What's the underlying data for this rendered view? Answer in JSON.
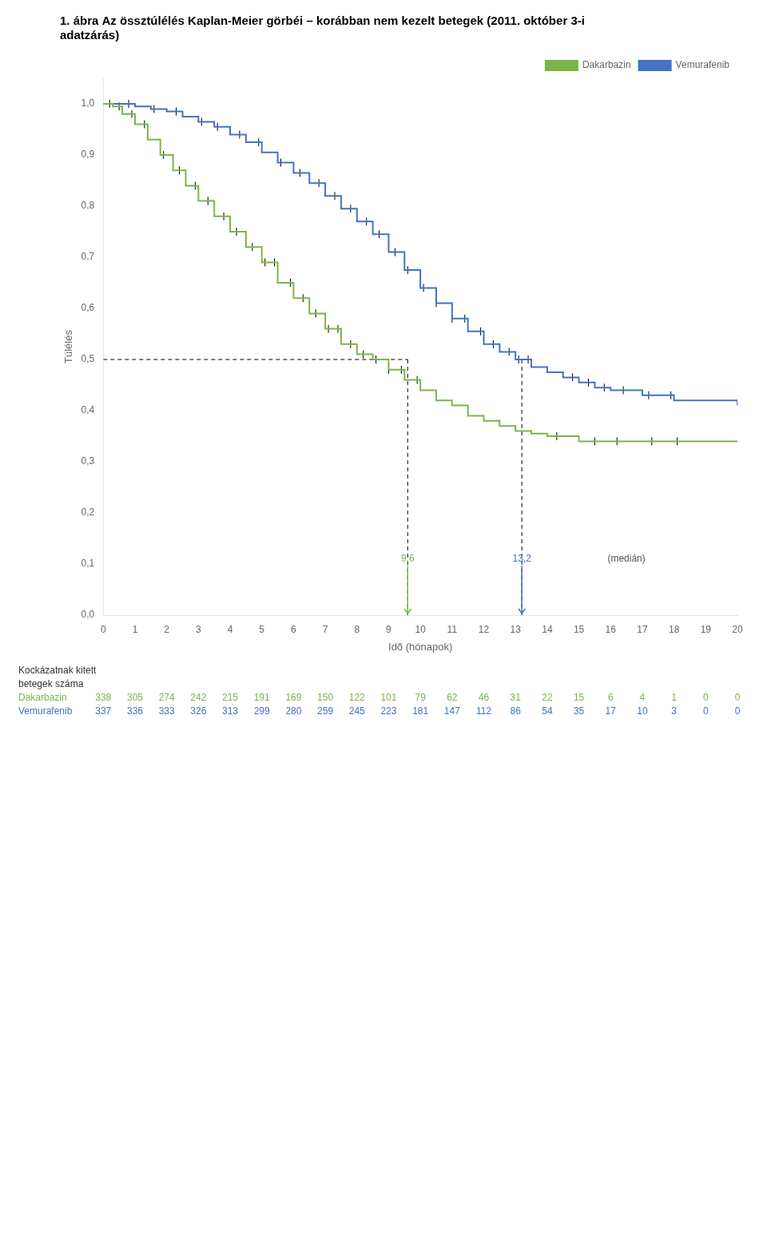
{
  "chart_data": {
    "type": "step",
    "title": [
      "1. ábra Az össztúlélés Kaplan-Meier görbéi – korábban nem kezelt betegek (2011. október 3-i",
      "adatzárás)"
    ],
    "x_label": "Idő (hónapok)",
    "y_label": "Túlélés",
    "xlim": [
      0,
      20
    ],
    "xticks": [
      0,
      1,
      2,
      3,
      4,
      5,
      6,
      7,
      8,
      9,
      10,
      11,
      12,
      13,
      14,
      15,
      16,
      17,
      18,
      19,
      20
    ],
    "ylim": [
      0,
      1.05
    ],
    "yticks": [
      {
        "value": 0,
        "label": "0,0"
      },
      {
        "value": 0.1,
        "label": "0,1"
      },
      {
        "value": 0.2,
        "label": "0,2"
      },
      {
        "value": 0.3,
        "label": "0,3"
      },
      {
        "value": 0.4,
        "label": "0,4"
      },
      {
        "value": 0.5,
        "label": "0,5"
      },
      {
        "value": 0.6,
        "label": "0,6"
      },
      {
        "value": 0.7,
        "label": "0,7"
      },
      {
        "value": 0.8,
        "label": "0,8"
      },
      {
        "value": 0.9,
        "label": "0,9"
      },
      {
        "value": 1,
        "label": "1,0"
      }
    ],
    "grid": false,
    "legend": "upper right",
    "series": [
      {
        "name": "Dakarbazin",
        "color": "#7ab648",
        "x": [
          0,
          0.3,
          0.6,
          1,
          1.4,
          1.8,
          2.2,
          2.6,
          3.0,
          3.5,
          4.0,
          4.5,
          5.0,
          5.5,
          6.0,
          6.5,
          7.0,
          7.5,
          8.0,
          8.5,
          9.0,
          9.5,
          10.0,
          10.5,
          11.0,
          11.5,
          12.0,
          12.5,
          13.0,
          13.5,
          14.0,
          15.0,
          16.0,
          17.0,
          18.0,
          20.0
        ],
        "values": [
          1.0,
          0.995,
          0.98,
          0.96,
          0.93,
          0.9,
          0.87,
          0.84,
          0.81,
          0.78,
          0.75,
          0.72,
          0.69,
          0.65,
          0.62,
          0.59,
          0.56,
          0.53,
          0.51,
          0.5,
          0.48,
          0.46,
          0.44,
          0.42,
          0.41,
          0.39,
          0.38,
          0.37,
          0.36,
          0.355,
          0.35,
          0.34,
          0.34,
          0.34,
          0.34,
          0.34
        ],
        "censored": {
          "color": "black",
          "x": [
            0.2,
            0.5,
            0.9,
            1.3,
            1.9,
            2.4,
            2.9,
            3.3,
            3.8,
            4.2,
            4.7,
            5.1,
            5.4,
            5.9,
            6.3,
            6.7,
            7.1,
            7.4,
            7.8,
            8.2,
            8.6,
            9.0,
            9.4,
            9.9,
            14.3,
            15.5,
            16.2,
            17.3,
            18.1
          ],
          "values": [
            1.0,
            0.995,
            0.98,
            0.96,
            0.9,
            0.87,
            0.84,
            0.81,
            0.78,
            0.75,
            0.72,
            0.69,
            0.69,
            0.65,
            0.62,
            0.59,
            0.56,
            0.56,
            0.53,
            0.51,
            0.5,
            0.48,
            0.48,
            0.46,
            0.35,
            0.34,
            0.34,
            0.34,
            0.34
          ]
        }
      },
      {
        "name": "Vemurafenib",
        "color": "#4472c4",
        "x": [
          0,
          0.5,
          1.0,
          1.5,
          2.0,
          2.5,
          3.0,
          3.5,
          4.0,
          4.5,
          5.0,
          5.5,
          6.0,
          6.5,
          7.0,
          7.5,
          8.0,
          8.5,
          9.0,
          9.5,
          10.0,
          10.5,
          11.0,
          11.5,
          12.0,
          12.5,
          13.0,
          13.5,
          14.0,
          14.5,
          15.0,
          15.5,
          16.0,
          17.0,
          18.0,
          20.0
        ],
        "values": [
          1.0,
          1.0,
          0.995,
          0.99,
          0.985,
          0.975,
          0.965,
          0.955,
          0.94,
          0.925,
          0.905,
          0.885,
          0.865,
          0.845,
          0.82,
          0.795,
          0.77,
          0.745,
          0.71,
          0.675,
          0.64,
          0.61,
          0.58,
          0.555,
          0.53,
          0.515,
          0.5,
          0.485,
          0.475,
          0.465,
          0.455,
          0.445,
          0.44,
          0.43,
          0.42,
          0.41
        ],
        "censored": {
          "color": "black",
          "x": [
            0.8,
            1.6,
            2.3,
            3.1,
            3.6,
            4.3,
            4.9,
            5.6,
            6.2,
            6.8,
            7.3,
            7.8,
            8.3,
            8.7,
            9.2,
            9.6,
            10.1,
            10.5,
            11.0,
            11.4,
            11.9,
            12.3,
            12.8,
            13.1,
            13.4,
            14.8,
            15.3,
            15.8,
            16.4,
            17.2,
            17.9
          ],
          "values": [
            1.0,
            0.99,
            0.985,
            0.965,
            0.955,
            0.94,
            0.925,
            0.885,
            0.865,
            0.845,
            0.82,
            0.795,
            0.77,
            0.745,
            0.71,
            0.675,
            0.64,
            0.61,
            0.58,
            0.58,
            0.555,
            0.53,
            0.515,
            0.5,
            0.5,
            0.465,
            0.455,
            0.445,
            0.44,
            0.43,
            0.43
          ]
        }
      }
    ],
    "reference_lines": [
      {
        "x": [
          0,
          9.6
        ],
        "values": [
          0.5,
          0.5
        ],
        "color": "black",
        "line_style": "dashed"
      },
      {
        "x": [
          9.6,
          9.6
        ],
        "values": [
          0,
          0.5
        ],
        "color": "black",
        "line_style": "dashed"
      },
      {
        "x": [
          13.2,
          13.2
        ],
        "values": [
          0,
          0.5
        ],
        "color": "black",
        "line_style": "dashed"
      }
    ],
    "annotations": [
      {
        "text": "9,6",
        "x": 9.6,
        "y": 0.1,
        "color": "#7ab648",
        "marker": "arrow"
      },
      {
        "text": "13,2",
        "x": 13.2,
        "y": 0.1,
        "color": "#4472c4",
        "marker": "arrow"
      },
      {
        "text": "(medián)",
        "x": 16.5,
        "y": 0.1,
        "color": "#555555"
      }
    ],
    "at_risk": {
      "title": [
        "Kockázatnak kitett",
        "betegek száma"
      ],
      "rows": [
        {
          "name": "Dakarbazin",
          "color": "#7ab648",
          "values": [
            338,
            305,
            274,
            242,
            215,
            191,
            169,
            150,
            122,
            101,
            79,
            62,
            46,
            31,
            22,
            15,
            6,
            4,
            1,
            0,
            0
          ]
        },
        {
          "name": "Vemurafenib",
          "color": "#4472c4",
          "values": [
            337,
            336,
            333,
            326,
            313,
            299,
            280,
            259,
            245,
            223,
            181,
            147,
            112,
            86,
            54,
            35,
            17,
            10,
            3,
            0,
            0
          ]
        }
      ]
    }
  }
}
